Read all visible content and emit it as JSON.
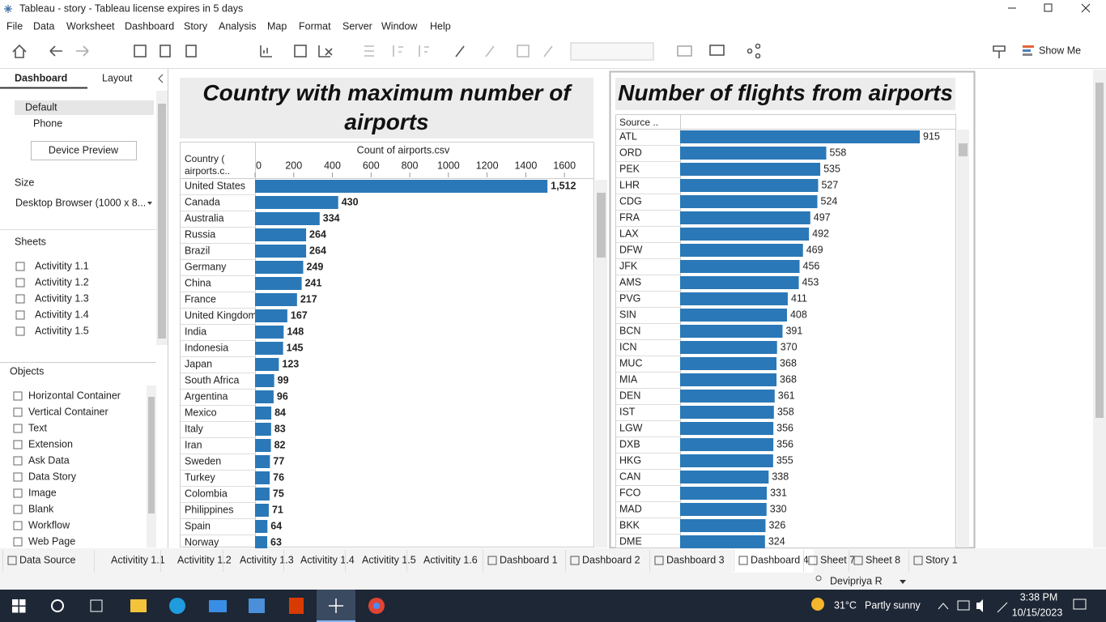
{
  "window": {
    "title": "Tableau - story - Tableau license expires in 5 days"
  },
  "menu": [
    "File",
    "Data",
    "Worksheet",
    "Dashboard",
    "Story",
    "Analysis",
    "Map",
    "Format",
    "Server",
    "Window",
    "Help"
  ],
  "toolbar": {
    "show_me": "Show Me"
  },
  "side_panel": {
    "tabs": [
      "Dashboard",
      "Layout"
    ],
    "devices": [
      "Default",
      "Phone"
    ],
    "device_preview": "Device Preview",
    "size_heading": "Size",
    "size_value": "Desktop Browser (1000 x 8...",
    "sheets_heading": "Sheets",
    "sheets": [
      "Activitity 1.1",
      "Activitity 1.2",
      "Activitity 1.3",
      "Activitity 1.4",
      "Activitity 1.5"
    ],
    "objects_heading": "Objects",
    "objects": [
      "Horizontal Container",
      "Vertical Container",
      "Text",
      "Extension",
      "Ask Data",
      "Data Story",
      "Image",
      "Blank",
      "Workflow",
      "Web Page"
    ]
  },
  "chart_data": [
    {
      "type": "bar",
      "orientation": "horizontal",
      "title": "Country with maximum number of airports",
      "row_header": "Country ( airports.c..",
      "x_label": "Count of airports.csv",
      "categories": [
        "United States",
        "Canada",
        "Australia",
        "Russia",
        "Brazil",
        "Germany",
        "China",
        "France",
        "United Kingdom",
        "India",
        "Indonesia",
        "Japan",
        "South Africa",
        "Argentina",
        "Mexico",
        "Italy",
        "Iran",
        "Sweden",
        "Turkey",
        "Colombia",
        "Philippines",
        "Spain",
        "Norway"
      ],
      "values": [
        1512,
        430,
        334,
        264,
        264,
        249,
        241,
        217,
        167,
        148,
        145,
        123,
        99,
        96,
        84,
        83,
        82,
        77,
        76,
        75,
        71,
        64,
        63
      ],
      "value_labels": [
        "1,512",
        "430",
        "334",
        "264",
        "264",
        "249",
        "241",
        "217",
        "167",
        "148",
        "145",
        "123",
        "99",
        "96",
        "84",
        "83",
        "82",
        "77",
        "76",
        "75",
        "71",
        "64",
        "63"
      ],
      "color": "#2a78b7",
      "xlim": [
        0,
        1750
      ],
      "xticks": [
        0,
        200,
        400,
        600,
        800,
        1000,
        1200,
        1400,
        1600
      ]
    },
    {
      "type": "bar",
      "orientation": "horizontal",
      "title": "Number of flights from airports",
      "row_header": "Source ..",
      "categories": [
        "ATL",
        "ORD",
        "PEK",
        "LHR",
        "CDG",
        "FRA",
        "LAX",
        "DFW",
        "JFK",
        "AMS",
        "PVG",
        "SIN",
        "BCN",
        "ICN",
        "MUC",
        "MIA",
        "DEN",
        "IST",
        "LGW",
        "DXB",
        "HKG",
        "CAN",
        "FCO",
        "MAD",
        "BKK",
        "DME"
      ],
      "values": [
        915,
        558,
        535,
        527,
        524,
        497,
        492,
        469,
        456,
        453,
        411,
        408,
        391,
        370,
        368,
        368,
        361,
        358,
        356,
        356,
        355,
        338,
        331,
        330,
        326,
        324
      ],
      "color": "#2a78b7",
      "xlim": [
        0,
        1051
      ]
    }
  ],
  "sheet_tabs": [
    "Data Source",
    "Activitity 1.1",
    "Activitity 1.2",
    "Activitity 1.3",
    "Activitity 1.4",
    "Activitity 1.5",
    "Activitity 1.6",
    "Dashboard 1",
    "Dashboard 2",
    "Dashboard 3",
    "Dashboard 4",
    "Sheet 7",
    "Sheet 8",
    "Story 1"
  ],
  "status": {
    "user": "Devipriya R"
  },
  "taskbar": {
    "temperature": "31°C",
    "weather": "Partly sunny",
    "time": "3:38 PM",
    "date": "10/15/2023"
  }
}
